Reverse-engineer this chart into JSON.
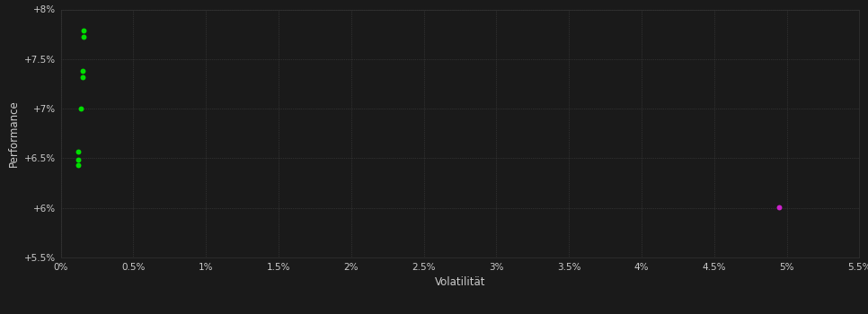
{
  "background_color": "#1a1a1a",
  "plot_bg_color": "#1a1a1a",
  "grid_color": "#505050",
  "text_color": "#cccccc",
  "xlabel": "Volatilität",
  "ylabel": "Performance",
  "xlim": [
    0.0,
    0.055
  ],
  "ylim": [
    0.055,
    0.08
  ],
  "xtick_vals": [
    0.0,
    0.005,
    0.01,
    0.015,
    0.02,
    0.025,
    0.03,
    0.035,
    0.04,
    0.045,
    0.05,
    0.055
  ],
  "xtick_labels": [
    "0%",
    "0.5%",
    "1%",
    "1.5%",
    "2%",
    "2.5%",
    "3%",
    "3.5%",
    "4%",
    "4.5%",
    "5%",
    "5.5%"
  ],
  "ytick_vals": [
    0.055,
    0.06,
    0.065,
    0.07,
    0.075,
    0.08
  ],
  "ytick_labels": [
    "+5.5%",
    "+6%",
    "+6.5%",
    "+7%",
    "+7.5%",
    "+8%"
  ],
  "green_dots": [
    [
      0.00155,
      0.07785
    ],
    [
      0.00155,
      0.0772
    ],
    [
      0.0015,
      0.07385
    ],
    [
      0.0015,
      0.0732
    ],
    [
      0.0014,
      0.07005
    ],
    [
      0.0012,
      0.06565
    ],
    [
      0.0012,
      0.0649
    ],
    [
      0.0012,
      0.06435
    ]
  ],
  "magenta_dots": [
    [
      0.0495,
      0.06005
    ]
  ],
  "dot_size": 18,
  "green_color": "#00dd00",
  "magenta_color": "#cc22cc"
}
